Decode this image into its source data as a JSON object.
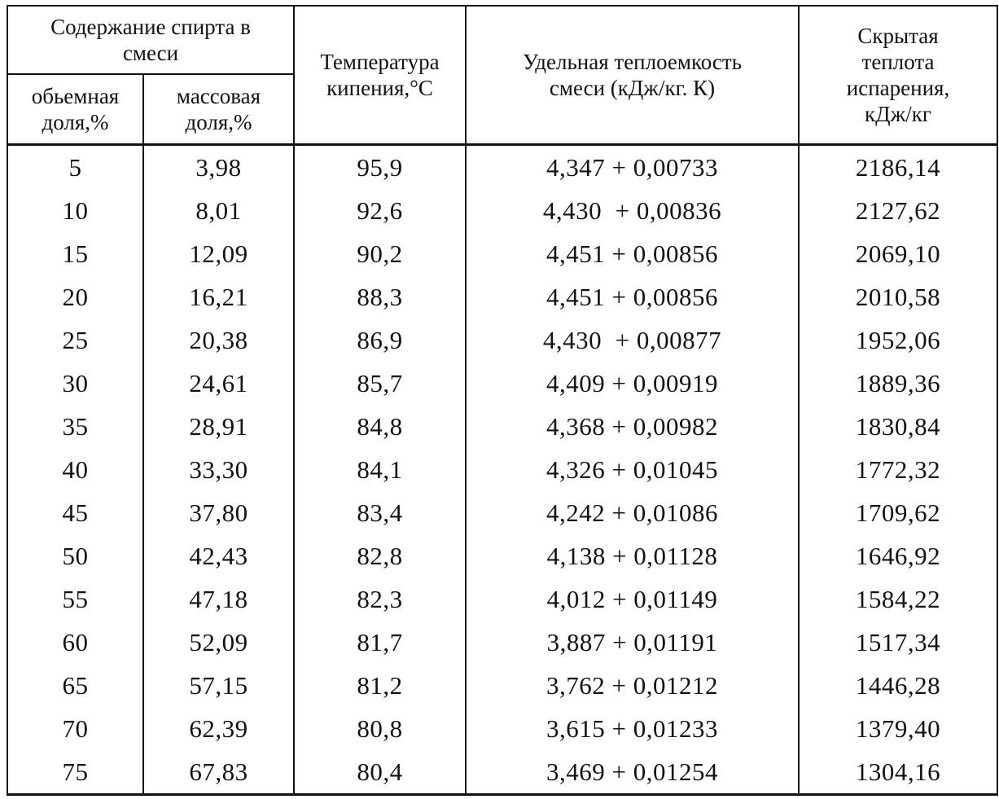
{
  "headers": {
    "group": "Содержание спирта в смеси",
    "volume_fraction": "обьемная доля,%",
    "mass_fraction": "массовая доля,%",
    "boiling_temp": "Температура кипения,°С",
    "specific_heat": "Удельная теплоемкость смеси (кДж/кг. К)",
    "latent_heat": "Скрытая теплота испарения, кДж/кг"
  },
  "rows": [
    {
      "vol": "5",
      "mass": "3,98",
      "temp": "95,9",
      "heat": "4,347 + 0,00733",
      "latent": "2186,14"
    },
    {
      "vol": "10",
      "mass": "8,01",
      "temp": "92,6",
      "heat": "4,430  + 0,00836",
      "latent": "2127,62"
    },
    {
      "vol": "15",
      "mass": "12,09",
      "temp": "90,2",
      "heat": "4,451 + 0,00856",
      "latent": "2069,10"
    },
    {
      "vol": "20",
      "mass": "16,21",
      "temp": "88,3",
      "heat": "4,451 + 0,00856",
      "latent": "2010,58"
    },
    {
      "vol": "25",
      "mass": "20,38",
      "temp": "86,9",
      "heat": "4,430  + 0,00877",
      "latent": "1952,06"
    },
    {
      "vol": "30",
      "mass": "24,61",
      "temp": "85,7",
      "heat": "4,409 + 0,00919",
      "latent": "1889,36"
    },
    {
      "vol": "35",
      "mass": "28,91",
      "temp": "84,8",
      "heat": "4,368 + 0,00982",
      "latent": "1830,84"
    },
    {
      "vol": "40",
      "mass": "33,30",
      "temp": "84,1",
      "heat": "4,326 + 0,01045",
      "latent": "1772,32"
    },
    {
      "vol": "45",
      "mass": "37,80",
      "temp": "83,4",
      "heat": "4,242 + 0,01086",
      "latent": "1709,62"
    },
    {
      "vol": "50",
      "mass": "42,43",
      "temp": "82,8",
      "heat": "4,138 + 0,01128",
      "latent": "1646,92"
    },
    {
      "vol": "55",
      "mass": "47,18",
      "temp": "82,3",
      "heat": "4,012 + 0,01149",
      "latent": "1584,22"
    },
    {
      "vol": "60",
      "mass": "52,09",
      "temp": "81,7",
      "heat": "3,887 + 0,01191",
      "latent": "1517,34"
    },
    {
      "vol": "65",
      "mass": "57,15",
      "temp": "81,2",
      "heat": "3,762 + 0,01212",
      "latent": "1446,28"
    },
    {
      "vol": "70",
      "mass": "62,39",
      "temp": "80,8",
      "heat": "3,615 + 0,01233",
      "latent": "1379,40"
    },
    {
      "vol": "75",
      "mass": "67,83",
      "temp": "80,4",
      "heat": "3,469 + 0,01254",
      "latent": "1304,16"
    }
  ]
}
